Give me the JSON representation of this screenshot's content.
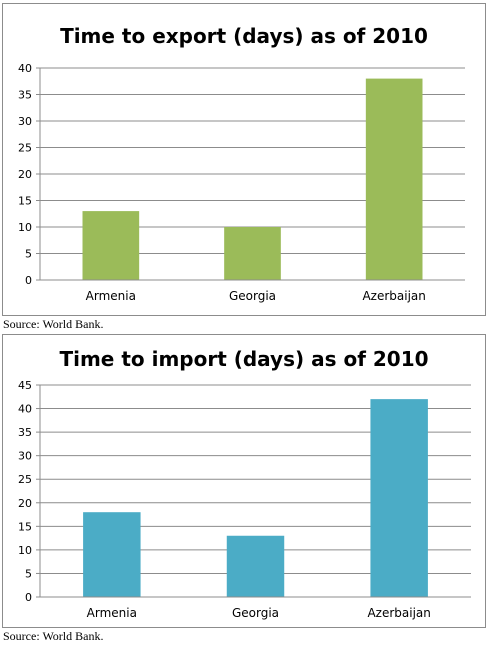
{
  "chart_data": [
    {
      "type": "bar",
      "title": "Time to export (days) as of 2010",
      "xlabel": "",
      "ylabel": "",
      "categories": [
        "Armenia",
        "Georgia",
        "Azerbaijan"
      ],
      "values": [
        13,
        10,
        38
      ],
      "ylim": [
        0,
        40
      ],
      "yticks": [
        0,
        5,
        10,
        15,
        20,
        25,
        30,
        35,
        40
      ],
      "grid": true,
      "color": "#9bbb59"
    },
    {
      "type": "bar",
      "title": "Time to import (days) as of 2010",
      "xlabel": "",
      "ylabel": "",
      "categories": [
        "Armenia",
        "Georgia",
        "Azerbaijan"
      ],
      "values": [
        18,
        13,
        42
      ],
      "ylim": [
        0,
        45
      ],
      "yticks": [
        0,
        5,
        10,
        15,
        20,
        25,
        30,
        35,
        40,
        45
      ],
      "grid": true,
      "color": "#4bacc6"
    }
  ],
  "sources": [
    "Source: World Bank.",
    "Source: World Bank."
  ]
}
